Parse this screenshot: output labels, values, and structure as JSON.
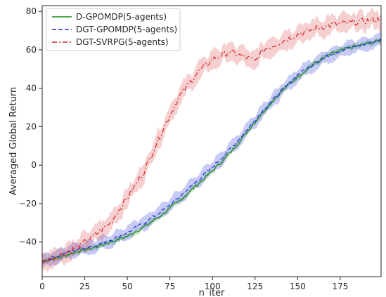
{
  "chart_data": {
    "type": "line",
    "title": "",
    "xlabel": "n_iter",
    "ylabel": "Averaged Global Return",
    "xlim": [
      0,
      199
    ],
    "ylim": [
      -58,
      83
    ],
    "x_ticks": [
      0,
      25,
      50,
      75,
      100,
      125,
      150,
      175
    ],
    "y_ticks": [
      -40,
      -20,
      0,
      20,
      40,
      60,
      80
    ],
    "grid": false,
    "legend_position": "top-left",
    "series": [
      {
        "name": "D-GPOMDP(5-agents)",
        "color": "#1a8a1a",
        "dash": "solid",
        "band": 1.2,
        "x": [
          0,
          10,
          20,
          30,
          40,
          50,
          60,
          70,
          80,
          90,
          100,
          110,
          120,
          130,
          140,
          150,
          160,
          170,
          180,
          190,
          199
        ],
        "y": [
          -50,
          -48,
          -45,
          -43,
          -40,
          -37,
          -32,
          -26,
          -19,
          -11,
          -3,
          6,
          17,
          28,
          38,
          46,
          53,
          58,
          61,
          63,
          65
        ]
      },
      {
        "name": "DGT-GPOMDP(5-agents)",
        "color": "#1f2fd6",
        "dash": "6,3",
        "band": 3,
        "x": [
          0,
          10,
          20,
          30,
          40,
          50,
          60,
          70,
          80,
          90,
          100,
          110,
          120,
          130,
          140,
          150,
          160,
          170,
          180,
          190,
          199
        ],
        "y": [
          -50,
          -47,
          -44,
          -42,
          -39,
          -35,
          -30,
          -24,
          -17,
          -9,
          -1,
          8,
          18,
          29,
          38,
          47,
          53,
          58,
          61,
          63,
          65
        ]
      },
      {
        "name": "DGT-SVRPG(5-agents)",
        "color": "#d62728",
        "dash": "7,3,2,3",
        "band": 4,
        "x": [
          0,
          10,
          20,
          30,
          40,
          50,
          60,
          70,
          80,
          90,
          100,
          110,
          120,
          125,
          130,
          140,
          150,
          160,
          170,
          180,
          190,
          199
        ],
        "y": [
          -50,
          -47,
          -43,
          -37,
          -30,
          -17,
          -3,
          17,
          35,
          47,
          55,
          59,
          56,
          54,
          60,
          64,
          68,
          71,
          73,
          74,
          75,
          76
        ]
      }
    ]
  }
}
